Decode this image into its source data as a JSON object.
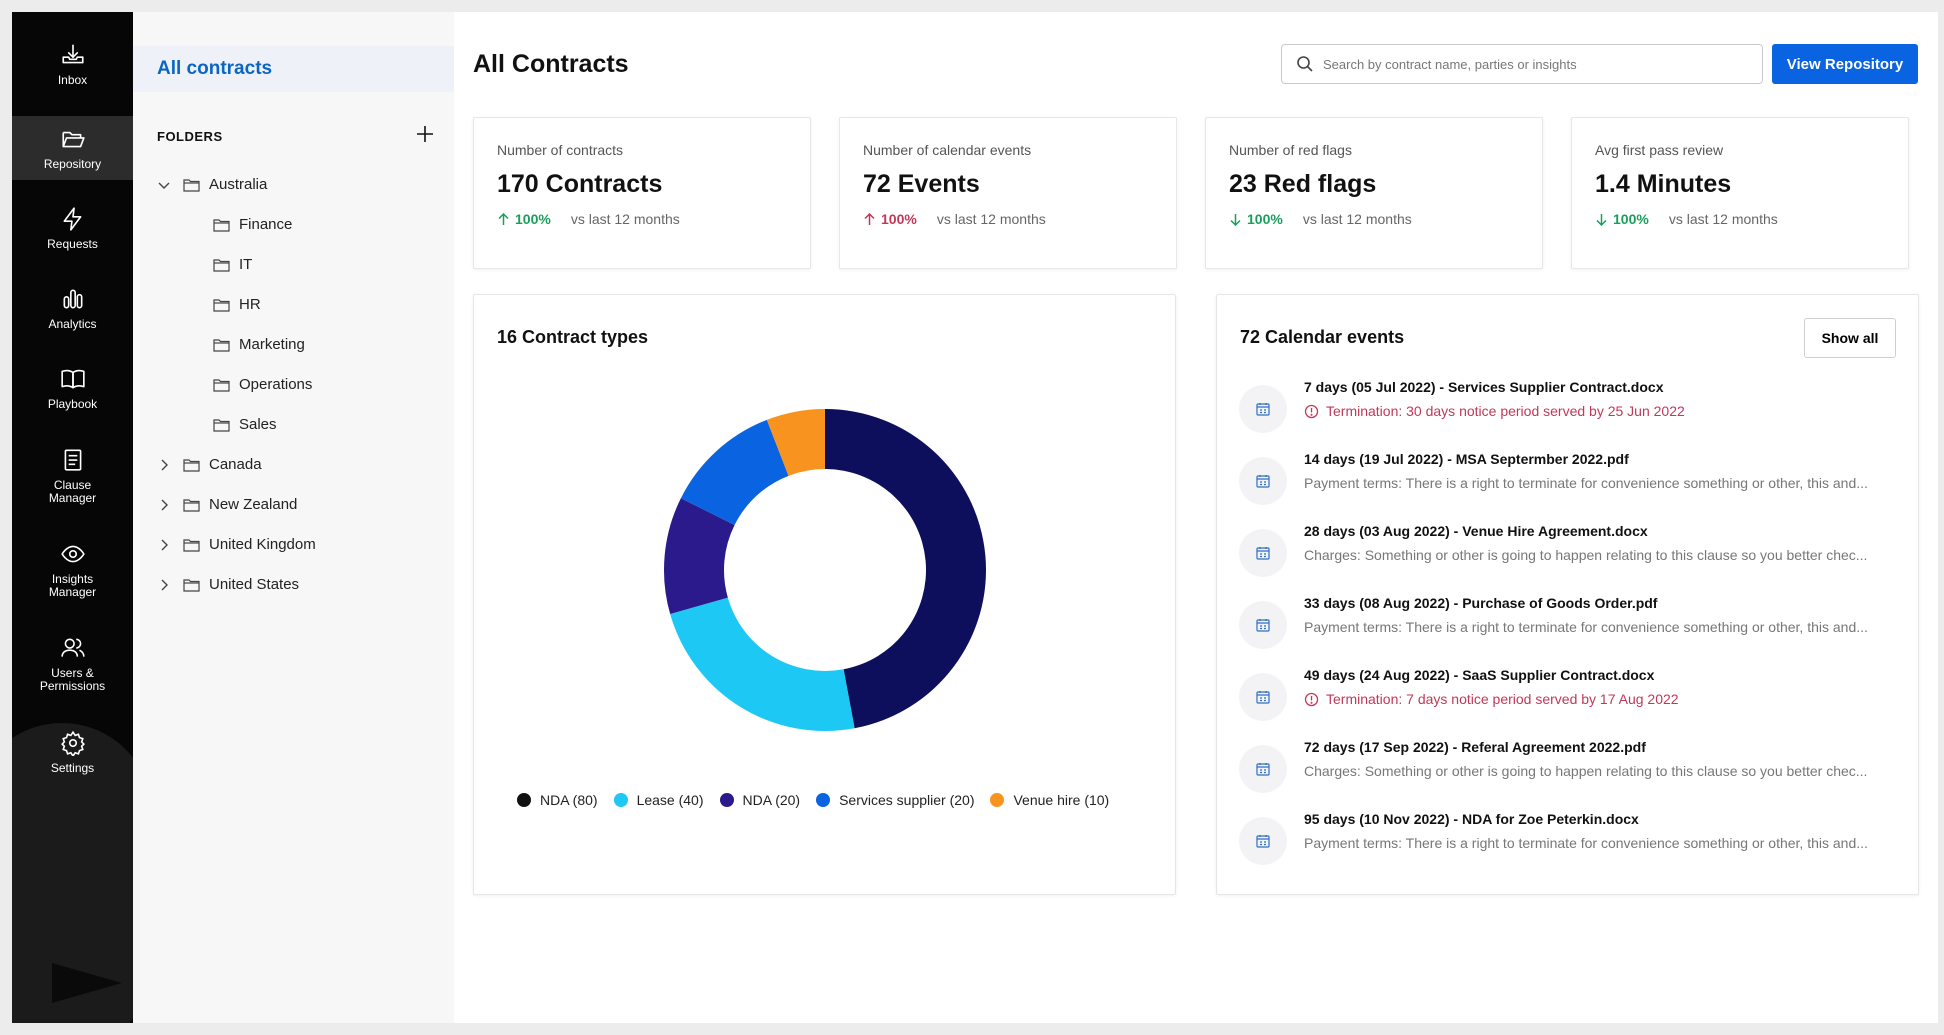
{
  "nav": {
    "items": [
      {
        "label": "Inbox",
        "icon": "inbox-icon"
      },
      {
        "label": "Repository",
        "icon": "folder-open-icon",
        "active": true
      },
      {
        "label": "Requests",
        "icon": "lightning-icon"
      },
      {
        "label": "Analytics",
        "icon": "bar-chart-icon"
      },
      {
        "label": "Playbook",
        "icon": "book-icon"
      },
      {
        "label": "Clause\nManager",
        "icon": "document-icon"
      },
      {
        "label": "Insights\nManager",
        "icon": "eye-icon"
      },
      {
        "label": "Users &\nPermissions",
        "icon": "users-icon"
      },
      {
        "label": "Settings",
        "icon": "gear-icon"
      }
    ]
  },
  "folders": {
    "all_contracts": "All contracts",
    "heading": "FOLDERS",
    "tree": [
      {
        "label": "Australia",
        "expanded": true,
        "children": [
          "Finance",
          "IT",
          "HR",
          "Marketing",
          "Operations",
          "Sales"
        ]
      },
      {
        "label": "Canada",
        "expanded": false
      },
      {
        "label": "New Zealand",
        "expanded": false
      },
      {
        "label": "United Kingdom",
        "expanded": false
      },
      {
        "label": "United States",
        "expanded": false
      }
    ]
  },
  "header": {
    "title": "All Contracts",
    "search_placeholder": "Search by contract name, parties or insights",
    "view_repository": "View Repository"
  },
  "stats": [
    {
      "label": "Number of contracts",
      "value": "170 Contracts",
      "pct": "100%",
      "direction": "up",
      "pct_color": "#1a9e5c",
      "compare": "vs last 12 months"
    },
    {
      "label": "Number of calendar events",
      "value": "72 Events",
      "pct": "100%",
      "direction": "up",
      "pct_color": "#c0395a",
      "compare": "vs last 12 months"
    },
    {
      "label": "Number of red flags",
      "value": "23 Red flags",
      "pct": "100%",
      "direction": "down",
      "pct_color": "#1a9e5c",
      "compare": "vs last 12 months"
    },
    {
      "label": "Avg first pass review",
      "value": "1.4 Minutes",
      "pct": "100%",
      "direction": "down",
      "pct_color": "#1a9e5c",
      "compare": "vs last 12 months"
    }
  ],
  "contract_types": {
    "title": "16 Contract types"
  },
  "chart_data": {
    "type": "pie",
    "donut": true,
    "categories": [
      "NDA",
      "Lease",
      "NDA",
      "Services supplier",
      "Venue hire"
    ],
    "values": [
      80,
      40,
      20,
      20,
      10
    ],
    "legend_labels": [
      "NDA (80)",
      "Lease (40)",
      "NDA (20)",
      "Services supplier (20)",
      "Venue hire (10)"
    ],
    "colors": [
      "#0e0f5c",
      "#1ec8f5",
      "#2a1a8c",
      "#0a63e0",
      "#f7931e"
    ],
    "legend_colors": [
      "#111111",
      "#1ec8f5",
      "#2a1a8c",
      "#0a63e0",
      "#f7931e"
    ],
    "legend_position": "bottom"
  },
  "events": {
    "title": "72 Calendar events",
    "show_all": "Show all",
    "items": [
      {
        "title": "7 days (05 Jul 2022) - Services Supplier Contract.docx",
        "desc": "Termination: 30 days notice period served by 25 Jun 2022",
        "warning": true
      },
      {
        "title": "14 days (19 Jul 2022) - MSA Septermber 2022.pdf",
        "desc": "Payment terms: There is a right to terminate for convenience something or other, this and...",
        "warning": false
      },
      {
        "title": "28 days (03 Aug 2022) - Venue Hire Agreement.docx",
        "desc": "Charges: Something or other is going to happen relating to this clause so you better chec...",
        "warning": false
      },
      {
        "title": "33 days (08 Aug 2022) - Purchase of Goods Order.pdf",
        "desc": "Payment terms: There is a right to terminate for convenience something or other, this and...",
        "warning": false
      },
      {
        "title": "49 days (24 Aug 2022) - SaaS Supplier Contract.docx",
        "desc": "Termination: 7 days notice period served by 17 Aug 2022",
        "warning": true
      },
      {
        "title": "72 days (17 Sep 2022) - Referal Agreement 2022.pdf",
        "desc": "Charges: Something or other is going to happen relating to this clause so you better chec...",
        "warning": false
      },
      {
        "title": "95 days (10 Nov 2022) - NDA for Zoe Peterkin.docx",
        "desc": "Payment terms: There is a right to terminate for convenience something or other, this and...",
        "warning": false
      }
    ]
  }
}
